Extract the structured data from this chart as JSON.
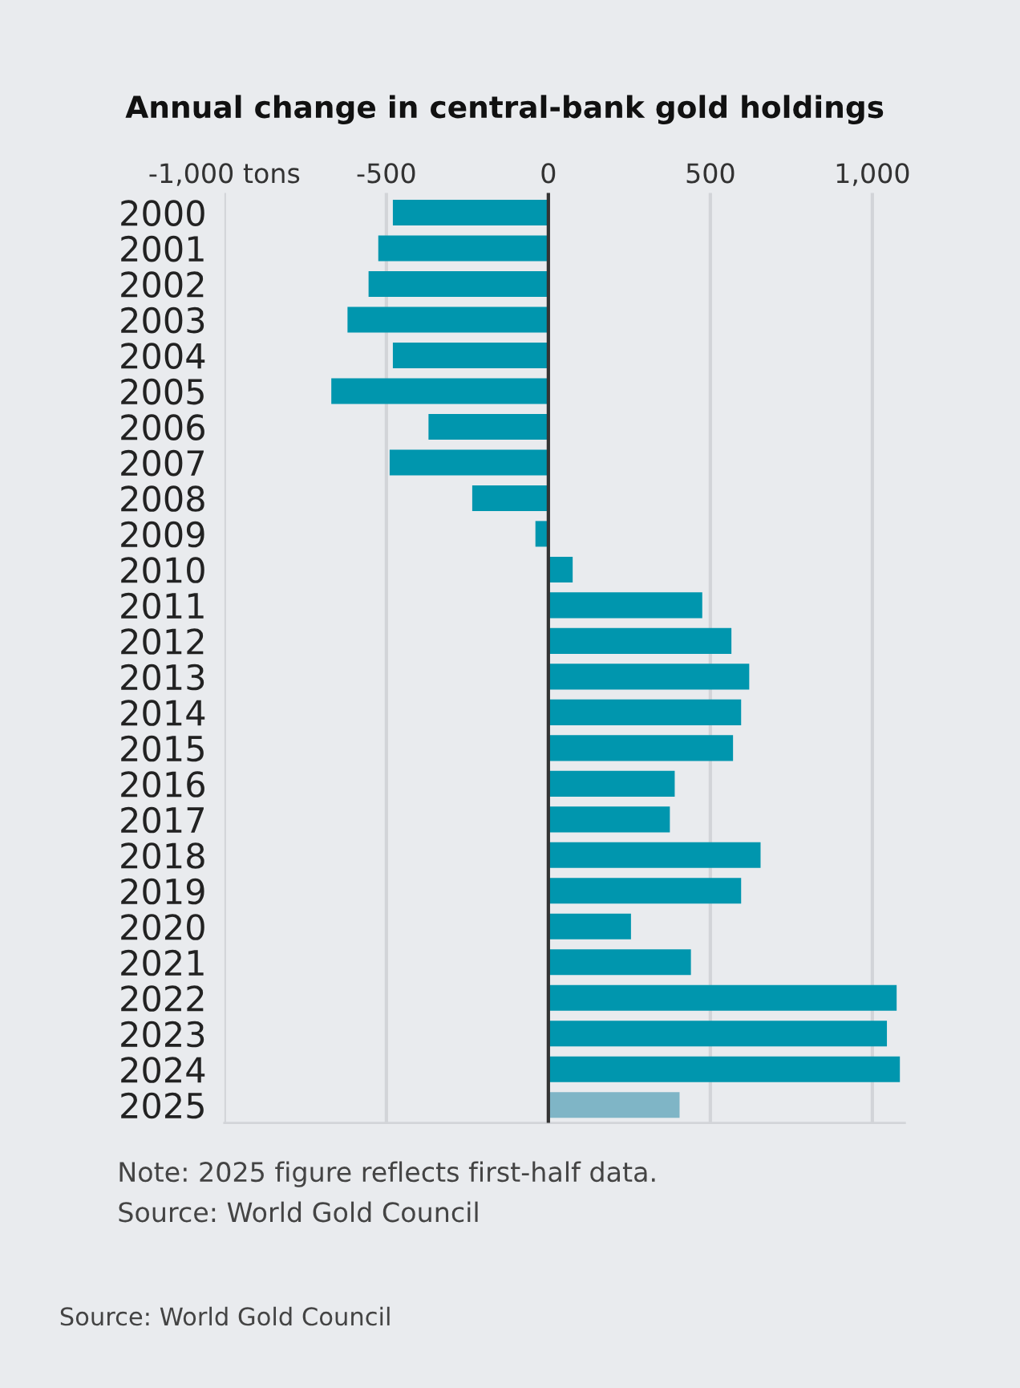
{
  "chart_data": {
    "type": "bar",
    "orientation": "horizontal",
    "title": "Annual change in central-bank gold holdings",
    "categories": [
      "2000",
      "2001",
      "2002",
      "2003",
      "2004",
      "2005",
      "2006",
      "2007",
      "2008",
      "2009",
      "2010",
      "2011",
      "2012",
      "2013",
      "2014",
      "2015",
      "2016",
      "2017",
      "2018",
      "2019",
      "2020",
      "2021",
      "2022",
      "2023",
      "2024",
      "2025"
    ],
    "values": [
      -480,
      -525,
      -555,
      -620,
      -480,
      -670,
      -370,
      -490,
      -235,
      -40,
      75,
      475,
      565,
      620,
      595,
      570,
      390,
      375,
      655,
      595,
      255,
      440,
      1075,
      1045,
      1085,
      405
    ],
    "colors": [
      "#0096ae",
      "#0096ae",
      "#0096ae",
      "#0096ae",
      "#0096ae",
      "#0096ae",
      "#0096ae",
      "#0096ae",
      "#0096ae",
      "#0096ae",
      "#0096ae",
      "#0096ae",
      "#0096ae",
      "#0096ae",
      "#0096ae",
      "#0096ae",
      "#0096ae",
      "#0096ae",
      "#0096ae",
      "#0096ae",
      "#0096ae",
      "#0096ae",
      "#0096ae",
      "#0096ae",
      "#0096ae",
      "#7fb5c6"
    ],
    "xlim": [
      -1000,
      1100
    ],
    "xticks": [
      {
        "value": -1000,
        "label": "-1,000 tons"
      },
      -500,
      0,
      500,
      {
        "value": 1000,
        "label": "1,000"
      }
    ],
    "grid": "x",
    "annotations": [
      "Note: 2025 figure reflects first-half data.",
      "Source: World Gold Council",
      "Source: World Gold Council"
    ]
  }
}
